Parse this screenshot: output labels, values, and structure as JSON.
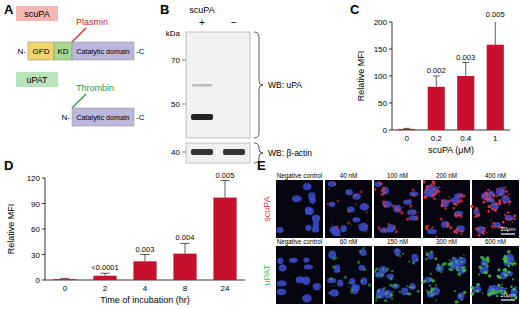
{
  "panels": {
    "A": {
      "label": "A",
      "n_term": "N-",
      "c_term": "-C",
      "constructs": [
        {
          "name": "scuPA",
          "protease": "Plasmin",
          "domains": [
            "GFD",
            "KD",
            "Catalytic domain"
          ]
        },
        {
          "name": "uPAT",
          "protease": "Thrombin",
          "domains": [
            "Catalytic domain"
          ]
        }
      ]
    },
    "B": {
      "label": "B",
      "sample": "scuPA",
      "lanes": [
        "+",
        "−"
      ],
      "unit": "kDa",
      "markers": [
        70,
        50
      ],
      "lower_markers": [
        40
      ],
      "blots": [
        "WB: uPA",
        "WB: β-actin"
      ]
    },
    "E": {
      "label": "E",
      "scale_bar": "20μm",
      "rows": [
        {
          "name": "scuPA",
          "color": "#e8383d",
          "conditions": [
            "Negative control",
            "40 nM",
            "100 nM",
            "200 nM",
            "400 nM"
          ]
        },
        {
          "name": "uPAT",
          "color": "#3cc24a",
          "conditions": [
            "Negative control",
            "60 nM",
            "150 nM",
            "300 nM",
            "600 nM"
          ]
        }
      ]
    }
  },
  "chart_data": [
    {
      "type": "bar",
      "title": "C",
      "y_label": "Relative MFI",
      "x_label": "scuPA (μM)",
      "categories": [
        "0",
        "0.2",
        "0.4",
        "1"
      ],
      "values": [
        2,
        80,
        100,
        158
      ],
      "errors": [
        1,
        20,
        25,
        45
      ],
      "annotations": [
        null,
        "0.002",
        "0.003",
        "0.005"
      ],
      "color": "#c8102e",
      "ylim": [
        0,
        200
      ],
      "yticks": [
        0,
        50,
        100,
        150,
        200
      ],
      "grid": false
    },
    {
      "type": "bar",
      "title": "D",
      "y_label": "Relative MFI",
      "x_label": "Time of incubation (hr)",
      "categories": [
        "0",
        "2",
        "4",
        "8",
        "24"
      ],
      "values": [
        1,
        5,
        22,
        31,
        97
      ],
      "errors": [
        1,
        3,
        8,
        12,
        20
      ],
      "annotations": [
        null,
        "<0.0001",
        "0.003",
        "0.004",
        "0.005"
      ],
      "color": "#c8102e",
      "ylim": [
        0,
        120
      ],
      "yticks": [
        0,
        30,
        60,
        90,
        120
      ],
      "grid": false
    }
  ]
}
